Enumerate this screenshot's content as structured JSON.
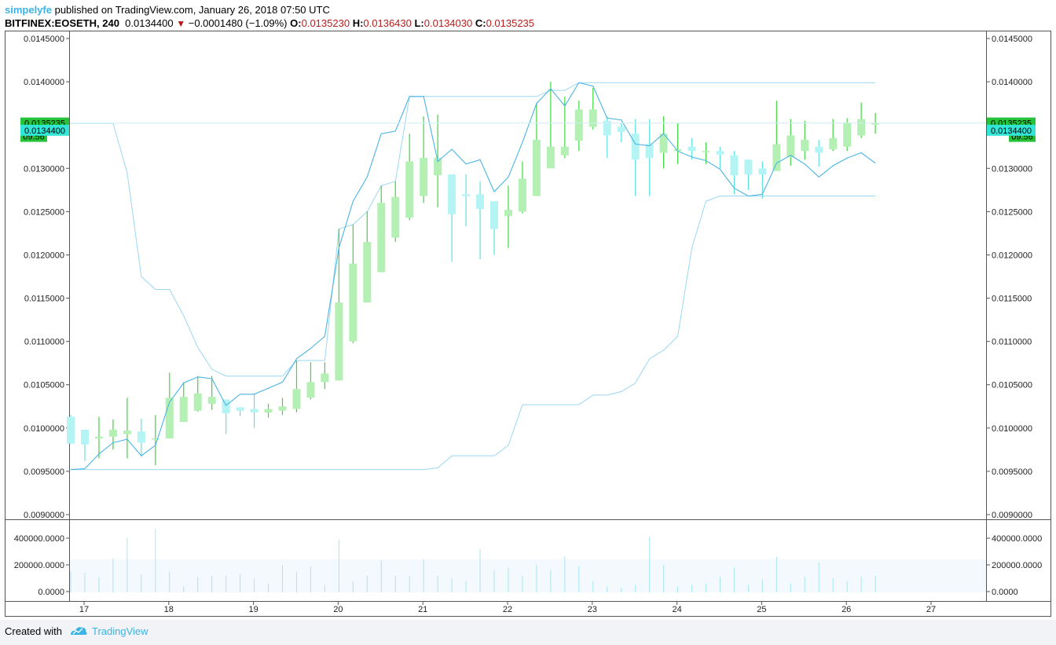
{
  "header": {
    "user": "simpelyfe",
    "published_text": " published on TradingView.com, January 26, 2018 07:50 UTC",
    "symbol": "BITFINEX:EOSETH, 240",
    "last_price": "0.0134400",
    "change_arrow": "▼",
    "change": "−0.0001480 (−1.09%)",
    "open_label": "O:",
    "open": "0.0135230",
    "high_label": "H:",
    "high": "0.0136430",
    "low_label": "L:",
    "low": "0.0134030",
    "close_label": "C:",
    "close": "0.0135235"
  },
  "price_axis_labels": [
    "0.0145000",
    "0.0140000",
    "0.0135000",
    "0.0130000",
    "0.0125000",
    "0.0120000",
    "0.0115000",
    "0.0110000",
    "0.0105000",
    "0.0100000",
    "0.0095000",
    "0.0090000"
  ],
  "volume_axis_labels": [
    "400000.0000",
    "200000.0000",
    "0.0000"
  ],
  "badges": {
    "close_price": "0.0135235",
    "countdown": "09:56",
    "indicator_value": "0.0134400"
  },
  "colors": {
    "up": "#3ed63e",
    "up_body": "#b4f0b4",
    "down": "#5fe0e0",
    "down_body": "#b4f4f4",
    "channel": "#9ad7f2",
    "indicator": "#4ab4e4",
    "badge_green": "#26c23a",
    "badge_cyan": "#31e6d6",
    "brand": "#3bb3e4"
  },
  "footer": {
    "created_with": "Created with",
    "brand": "TradingView"
  },
  "chart_data": {
    "type": "candlestick",
    "symbol": "BITFINEX:EOSETH",
    "interval": "240",
    "x_tick_labels": [
      "17",
      "18",
      "19",
      "20",
      "21",
      "22",
      "23",
      "24",
      "25",
      "26",
      "27"
    ],
    "ylim": [
      0.009,
      0.0145
    ],
    "volume_ylim": [
      0,
      400000
    ],
    "candles": [
      {
        "o": 0.01013,
        "h": 0.01015,
        "l": 0.00982,
        "c": 0.00982,
        "v": 150000
      },
      {
        "o": 0.00998,
        "h": 0.00998,
        "l": 0.00962,
        "c": 0.00981,
        "v": 140000
      },
      {
        "o": 0.00988,
        "h": 0.01013,
        "l": 0.00965,
        "c": 0.0099,
        "v": 110000
      },
      {
        "o": 0.0099,
        "h": 0.0101,
        "l": 0.00975,
        "c": 0.00998,
        "v": 250000
      },
      {
        "o": 0.00993,
        "h": 0.01035,
        "l": 0.00965,
        "c": 0.00997,
        "v": 400000
      },
      {
        "o": 0.00996,
        "h": 0.01011,
        "l": 0.00967,
        "c": 0.00983,
        "v": 130000
      },
      {
        "o": 0.00988,
        "h": 0.01015,
        "l": 0.00957,
        "c": 0.00988,
        "v": 470000
      },
      {
        "o": 0.00988,
        "h": 0.01064,
        "l": 0.00988,
        "c": 0.01035,
        "v": 150000
      },
      {
        "o": 0.01007,
        "h": 0.01053,
        "l": 0.01007,
        "c": 0.01036,
        "v": 40000
      },
      {
        "o": 0.0102,
        "h": 0.0106,
        "l": 0.01019,
        "c": 0.0104,
        "v": 110000
      },
      {
        "o": 0.01028,
        "h": 0.0106,
        "l": 0.01021,
        "c": 0.01036,
        "v": 120000
      },
      {
        "o": 0.01033,
        "h": 0.01033,
        "l": 0.00993,
        "c": 0.01017,
        "v": 120000
      },
      {
        "o": 0.01024,
        "h": 0.01024,
        "l": 0.01014,
        "c": 0.0102,
        "v": 130000
      },
      {
        "o": 0.01022,
        "h": 0.0104,
        "l": 0.01,
        "c": 0.01018,
        "v": 100000
      },
      {
        "o": 0.01018,
        "h": 0.01028,
        "l": 0.01012,
        "c": 0.01022,
        "v": 60000
      },
      {
        "o": 0.0102,
        "h": 0.01035,
        "l": 0.01015,
        "c": 0.01025,
        "v": 200000
      },
      {
        "o": 0.01022,
        "h": 0.01078,
        "l": 0.01018,
        "c": 0.01045,
        "v": 150000
      },
      {
        "o": 0.01035,
        "h": 0.01076,
        "l": 0.01033,
        "c": 0.01053,
        "v": 190000
      },
      {
        "o": 0.01053,
        "h": 0.01076,
        "l": 0.01045,
        "c": 0.01063,
        "v": 50000
      },
      {
        "o": 0.01055,
        "h": 0.0123,
        "l": 0.01055,
        "c": 0.01145,
        "v": 390000
      },
      {
        "o": 0.011,
        "h": 0.01235,
        "l": 0.01098,
        "c": 0.0119,
        "v": 80000
      },
      {
        "o": 0.01145,
        "h": 0.0125,
        "l": 0.01145,
        "c": 0.01215,
        "v": 120000
      },
      {
        "o": 0.0118,
        "h": 0.0128,
        "l": 0.0118,
        "c": 0.0126,
        "v": 230000
      },
      {
        "o": 0.0122,
        "h": 0.01285,
        "l": 0.01215,
        "c": 0.01267,
        "v": 120000
      },
      {
        "o": 0.01243,
        "h": 0.0134,
        "l": 0.0124,
        "c": 0.01308,
        "v": 120000
      },
      {
        "o": 0.01268,
        "h": 0.0136,
        "l": 0.0126,
        "c": 0.01312,
        "v": 240000
      },
      {
        "o": 0.01292,
        "h": 0.01362,
        "l": 0.01255,
        "c": 0.01312,
        "v": 120000
      },
      {
        "o": 0.01293,
        "h": 0.01293,
        "l": 0.01192,
        "c": 0.01247,
        "v": 100000
      },
      {
        "o": 0.0127,
        "h": 0.01293,
        "l": 0.01233,
        "c": 0.01268,
        "v": 80000
      },
      {
        "o": 0.0127,
        "h": 0.01285,
        "l": 0.01195,
        "c": 0.01253,
        "v": 320000
      },
      {
        "o": 0.01262,
        "h": 0.01262,
        "l": 0.012,
        "c": 0.0123,
        "v": 160000
      },
      {
        "o": 0.01245,
        "h": 0.0128,
        "l": 0.01208,
        "c": 0.01252,
        "v": 180000
      },
      {
        "o": 0.0125,
        "h": 0.01308,
        "l": 0.01248,
        "c": 0.01288,
        "v": 120000
      },
      {
        "o": 0.01268,
        "h": 0.01375,
        "l": 0.01268,
        "c": 0.01333,
        "v": 200000
      },
      {
        "o": 0.013,
        "h": 0.014,
        "l": 0.013,
        "c": 0.01325,
        "v": 160000
      },
      {
        "o": 0.01315,
        "h": 0.01383,
        "l": 0.01312,
        "c": 0.01325,
        "v": 260000
      },
      {
        "o": 0.01332,
        "h": 0.01378,
        "l": 0.0132,
        "c": 0.01368,
        "v": 190000
      },
      {
        "o": 0.01348,
        "h": 0.01393,
        "l": 0.01345,
        "c": 0.01368,
        "v": 80000
      },
      {
        "o": 0.01355,
        "h": 0.0136,
        "l": 0.01312,
        "c": 0.01338,
        "v": 40000
      },
      {
        "o": 0.01348,
        "h": 0.01352,
        "l": 0.0133,
        "c": 0.01342,
        "v": 30000
      },
      {
        "o": 0.0134,
        "h": 0.01357,
        "l": 0.01268,
        "c": 0.0131,
        "v": 50000
      },
      {
        "o": 0.01328,
        "h": 0.01357,
        "l": 0.01268,
        "c": 0.01312,
        "v": 410000
      },
      {
        "o": 0.01318,
        "h": 0.0136,
        "l": 0.013,
        "c": 0.0134,
        "v": 200000
      },
      {
        "o": 0.0132,
        "h": 0.01352,
        "l": 0.01305,
        "c": 0.01322,
        "v": 40000
      },
      {
        "o": 0.01325,
        "h": 0.01335,
        "l": 0.0131,
        "c": 0.0132,
        "v": 50000
      },
      {
        "o": 0.0132,
        "h": 0.0133,
        "l": 0.01305,
        "c": 0.0132,
        "v": 60000
      },
      {
        "o": 0.0132,
        "h": 0.01325,
        "l": 0.013,
        "c": 0.01316,
        "v": 110000
      },
      {
        "o": 0.01315,
        "h": 0.0132,
        "l": 0.0127,
        "c": 0.01292,
        "v": 180000
      },
      {
        "o": 0.0131,
        "h": 0.0131,
        "l": 0.01275,
        "c": 0.01293,
        "v": 50000
      },
      {
        "o": 0.013,
        "h": 0.01308,
        "l": 0.01265,
        "c": 0.01293,
        "v": 90000
      },
      {
        "o": 0.01297,
        "h": 0.01378,
        "l": 0.01297,
        "c": 0.01328,
        "v": 260000
      },
      {
        "o": 0.01313,
        "h": 0.01357,
        "l": 0.01303,
        "c": 0.01338,
        "v": 60000
      },
      {
        "o": 0.0132,
        "h": 0.01355,
        "l": 0.0131,
        "c": 0.01333,
        "v": 110000
      },
      {
        "o": 0.01325,
        "h": 0.01333,
        "l": 0.01302,
        "c": 0.01318,
        "v": 220000
      },
      {
        "o": 0.01322,
        "h": 0.01357,
        "l": 0.0132,
        "c": 0.01335,
        "v": 100000
      },
      {
        "o": 0.01325,
        "h": 0.01358,
        "l": 0.0132,
        "c": 0.01353,
        "v": 80000
      },
      {
        "o": 0.01338,
        "h": 0.01376,
        "l": 0.01335,
        "c": 0.01357,
        "v": 110000
      },
      {
        "o": 0.01352,
        "h": 0.01364,
        "l": 0.0134,
        "c": 0.01352,
        "v": 120000
      }
    ],
    "channel_upper": [
      0.01352,
      0.01352,
      0.01352,
      0.01352,
      0.01295,
      0.01175,
      0.0116,
      0.0116,
      0.0113,
      0.01093,
      0.01068,
      0.0106,
      0.0106,
      0.0106,
      0.0106,
      0.0106,
      0.01078,
      0.01078,
      0.01078,
      0.0123,
      0.01235,
      0.0125,
      0.0128,
      0.01285,
      0.01383,
      0.01383,
      0.01383,
      0.01383,
      0.01383,
      0.01383,
      0.01383,
      0.01383,
      0.01383,
      0.01383,
      0.0139,
      0.0139,
      0.01399,
      0.01399,
      0.01399,
      0.01399,
      0.01399,
      0.01399,
      0.01399,
      0.01399,
      0.01399,
      0.01399,
      0.01399,
      0.01399,
      0.01399,
      0.01399,
      0.01399,
      0.01399,
      0.01399,
      0.01399,
      0.01399,
      0.01399,
      0.01399,
      0.01399
    ],
    "channel_lower": [
      0.00952,
      0.00952,
      0.00952,
      0.00952,
      0.00952,
      0.00952,
      0.00952,
      0.00952,
      0.00952,
      0.00952,
      0.00952,
      0.00952,
      0.00952,
      0.00952,
      0.00952,
      0.00952,
      0.00952,
      0.00952,
      0.00952,
      0.00952,
      0.00952,
      0.00952,
      0.00952,
      0.00952,
      0.00952,
      0.00952,
      0.00954,
      0.00968,
      0.00968,
      0.00968,
      0.00968,
      0.0098,
      0.01027,
      0.01027,
      0.01027,
      0.01027,
      0.01027,
      0.01038,
      0.01038,
      0.01042,
      0.01052,
      0.0108,
      0.0109,
      0.01106,
      0.01208,
      0.01262,
      0.01268,
      0.01268,
      0.01268,
      0.01268,
      0.01268,
      0.01268,
      0.01268,
      0.01268,
      0.01268,
      0.01268,
      0.01268,
      0.01268
    ],
    "indicator_line": [
      0.00952,
      0.00953,
      0.0097,
      0.00983,
      0.00987,
      0.00968,
      0.0098,
      0.0103,
      0.01052,
      0.01059,
      0.01057,
      0.01026,
      0.01039,
      0.01039,
      0.01046,
      0.01053,
      0.0108,
      0.01092,
      0.01106,
      0.01208,
      0.01262,
      0.0129,
      0.0134,
      0.01343,
      0.01383,
      0.01383,
      0.01308,
      0.01322,
      0.01305,
      0.0131,
      0.01273,
      0.0129,
      0.0133,
      0.01375,
      0.01392,
      0.01372,
      0.01399,
      0.01395,
      0.01358,
      0.01356,
      0.01328,
      0.01326,
      0.0134,
      0.0132,
      0.01313,
      0.01309,
      0.01299,
      0.01277,
      0.01268,
      0.0127,
      0.01306,
      0.01315,
      0.01305,
      0.0129,
      0.01303,
      0.01312,
      0.01318,
      0.01306
    ]
  }
}
